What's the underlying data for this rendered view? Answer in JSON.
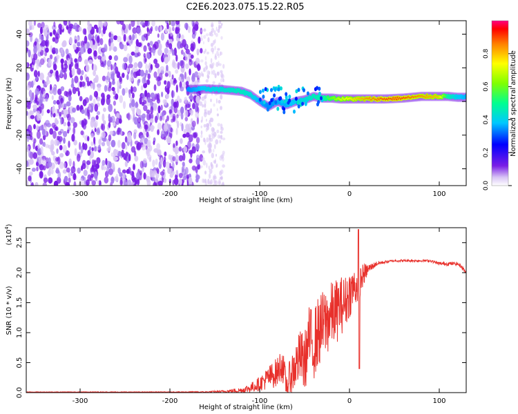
{
  "title": "C2E6.2023.075.15.22.R05",
  "colors": {
    "snr_line": "#e8302b",
    "background": "#ffffff",
    "axis": "#000000"
  },
  "chart_data": [
    {
      "type": "heatmap",
      "xlabel": "Height of straight line (km)",
      "ylabel": "Frequency (Hz)",
      "xlim": [
        -360,
        130
      ],
      "ylim": [
        -50,
        48
      ],
      "xticks": [
        -300,
        -200,
        -100,
        0,
        100
      ],
      "yticks": [
        -40,
        -20,
        0,
        20,
        40
      ],
      "colorbar": {
        "label": "Normalized spectral amplitude",
        "range": [
          0.0,
          1.0
        ],
        "ticks": [
          "0.0",
          "0.2",
          "0.4",
          "0.6",
          "0.8"
        ],
        "colormap": "rainbow"
      },
      "regions": [
        {
          "description_x_range": [
            -360,
            -165
          ],
          "freq_range": [
            -50,
            48
          ],
          "amplitude": 0.05
        },
        {
          "description_x_range": [
            -165,
            -140
          ],
          "freq_range": [
            -50,
            45
          ],
          "amplitude": 0.02
        }
      ],
      "ridge": {
        "x": [
          -180,
          -160,
          -140,
          -120,
          -110,
          -100,
          -90,
          -80,
          -70,
          -60,
          -50,
          -40,
          -30,
          -20,
          -10,
          0,
          20,
          40,
          60,
          80,
          100,
          110,
          120,
          130
        ],
        "freq": [
          7,
          7.5,
          7,
          6,
          4,
          0,
          -3,
          0,
          -2,
          0,
          1,
          3,
          2,
          2,
          1.5,
          1.5,
          1.5,
          1.5,
          2,
          3,
          3,
          3,
          2.5,
          2.5
        ],
        "amplitude": [
          0.25,
          0.35,
          0.4,
          0.45,
          0.4,
          0.3,
          0.25,
          0.3,
          0.3,
          0.35,
          0.4,
          0.45,
          0.5,
          0.6,
          0.7,
          0.75,
          0.85,
          0.9,
          0.9,
          0.85,
          0.8,
          0.5,
          0.35,
          0.3
        ]
      }
    },
    {
      "type": "line",
      "xlabel": "Height of straight line (km)",
      "ylabel": "SNR (10 * v/v)",
      "yscale_label": "(x10",
      "yscale_exp": "4",
      "scale_factor": 10000,
      "xlim": [
        -360,
        130
      ],
      "ylim": [
        0,
        2.75
      ],
      "xticks": [
        -300,
        -200,
        -100,
        0,
        100
      ],
      "yticks": [
        "0.0",
        "0.5",
        "1.0",
        "1.5",
        "2.0",
        "2.5"
      ],
      "series": [
        {
          "x": [
            -360,
            -300,
            -200,
            -160,
            -140,
            -120,
            -110,
            -100,
            -90,
            -80,
            -75,
            -70,
            -65,
            -60,
            -55,
            -50,
            -45,
            -40,
            -35,
            -30,
            -25,
            -20,
            -15,
            -10,
            -5,
            0,
            5,
            10,
            15,
            20,
            25,
            30,
            40,
            50,
            60,
            70,
            80,
            90,
            100,
            110,
            120,
            125,
            130
          ],
          "y": [
            0.01,
            0.01,
            0.01,
            0.01,
            0.02,
            0.04,
            0.08,
            0.15,
            0.25,
            0.35,
            0.5,
            0.1,
            0.3,
            0.45,
            0.6,
            0.5,
            0.9,
            0.8,
            1.0,
            1.1,
            1.2,
            1.3,
            1.35,
            1.45,
            1.5,
            1.65,
            1.75,
            1.8,
            1.95,
            2.05,
            2.1,
            2.15,
            2.18,
            2.2,
            2.2,
            2.2,
            2.2,
            2.2,
            2.15,
            2.15,
            2.15,
            2.1,
            2.0
          ],
          "noise_amplitude": [
            0.005,
            0.005,
            0.005,
            0.01,
            0.02,
            0.05,
            0.08,
            0.12,
            0.2,
            0.25,
            0.3,
            0.2,
            0.35,
            0.4,
            0.45,
            0.5,
            0.55,
            0.6,
            0.6,
            0.6,
            0.6,
            0.55,
            0.55,
            0.5,
            0.45,
            0.4,
            0.35,
            0.3,
            0.2,
            0.1,
            0.06,
            0.04,
            0.02,
            0.02,
            0.02,
            0.02,
            0.02,
            0.02,
            0.03,
            0.03,
            0.03,
            0.03,
            0.05
          ],
          "peak": {
            "x": 10,
            "y": 2.72
          }
        }
      ]
    }
  ]
}
